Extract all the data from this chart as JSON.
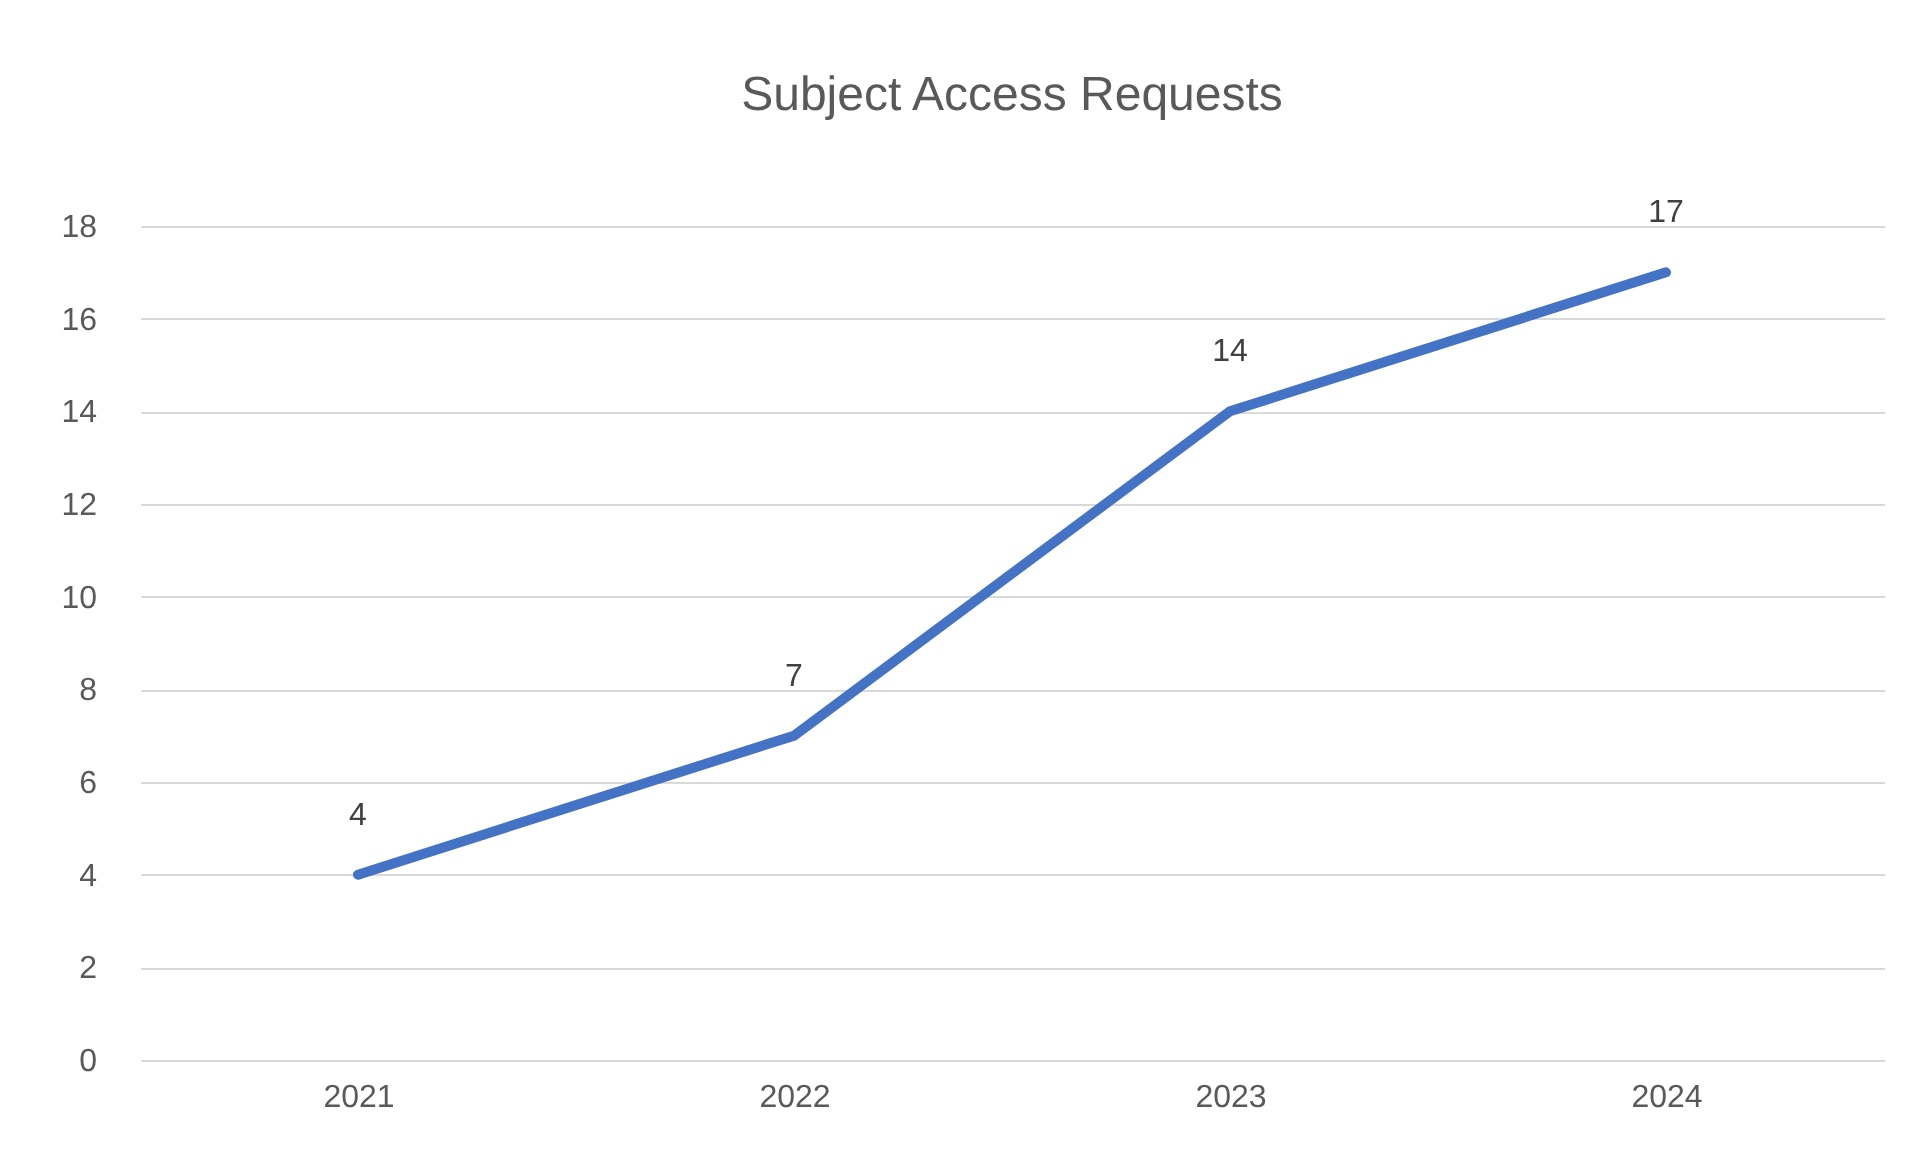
{
  "chart_data": {
    "type": "line",
    "title": "Subject Access Requests",
    "categories": [
      "2021",
      "2022",
      "2023",
      "2024"
    ],
    "series": [
      {
        "color": "#4472c4",
        "values": [
          4,
          7,
          14,
          17
        ]
      }
    ],
    "ylim": [
      0,
      18
    ],
    "yticks": [
      0,
      2,
      4,
      6,
      8,
      10,
      12,
      14,
      16,
      18
    ],
    "grid": "y",
    "data_labels": true,
    "legend": false,
    "marker": "none",
    "line_style": "solid"
  }
}
